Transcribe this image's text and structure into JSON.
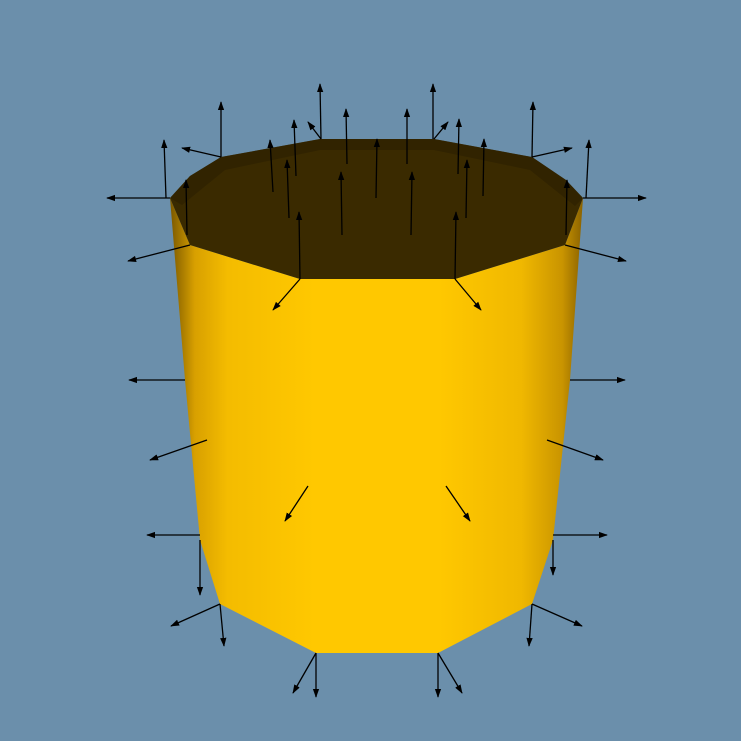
{
  "scene": {
    "object": "open-octagonal-cup-with-normal-arrows",
    "colors": {
      "background": "#6b8fab",
      "outer_light": "#ffc800",
      "outer_mid": "#f0b800",
      "outer_dark": "#a07400",
      "inner": "#3a2a00",
      "inner_shadow": "#2c2000",
      "arrow": "#000000"
    }
  }
}
